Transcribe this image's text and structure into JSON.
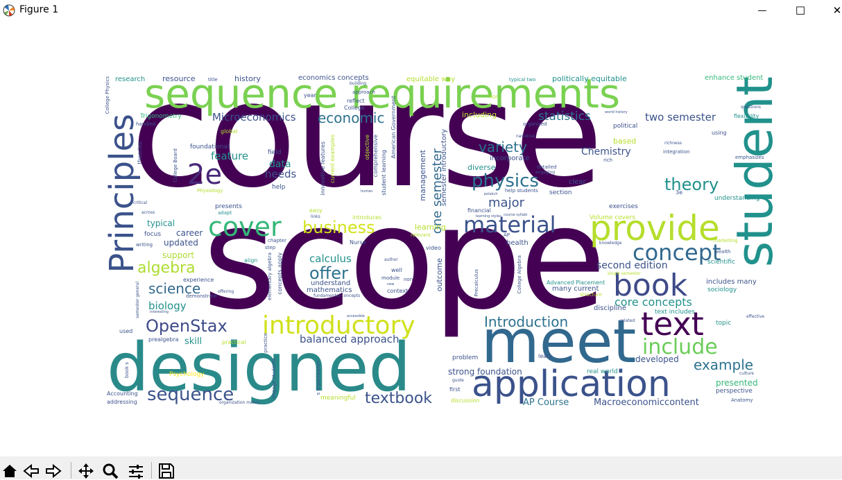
{
  "window": {
    "title": "Figure 1",
    "minimize_glyph": "—",
    "maximize_glyph": "☐",
    "close_glyph": "✕"
  },
  "toolbar": {
    "buttons": [
      {
        "name": "home-icon",
        "tooltip": "Reset original view"
      },
      {
        "name": "back-icon",
        "tooltip": "Back"
      },
      {
        "name": "forward-icon",
        "tooltip": "Forward"
      },
      {
        "name": "pan-icon",
        "tooltip": "Pan"
      },
      {
        "name": "zoom-icon",
        "tooltip": "Zoom"
      },
      {
        "name": "configure-subplots-icon",
        "tooltip": "Configure subplots"
      },
      {
        "name": "save-icon",
        "tooltip": "Save the figure"
      }
    ]
  },
  "colors": {
    "purple": "#440154",
    "indigo": "#3b528b",
    "teal": "#21918c",
    "green": "#5ec962",
    "yellow": "#fde725"
  },
  "wordcloud": {
    "words": {
      "course": "course",
      "scope": "scope",
      "designed": "designed",
      "meet": "meet",
      "student": "student",
      "sequence_requirements": "sequence requirements",
      "principles": "Principles",
      "application": "application",
      "provide": "provide",
      "book": "book",
      "text": "text",
      "cover": "cover",
      "introductory": "introductory",
      "material": "material",
      "concept": "concept",
      "include": "include",
      "two_e": "2e",
      "physics": "physics",
      "theory": "theory",
      "business": "business",
      "sequence": "sequence",
      "textbook": "textbook",
      "openstax": "OpenStax",
      "introduction": "Introduction",
      "example": "example",
      "algebra": "algebra",
      "offer": "offer",
      "variety": "variety",
      "economic": "economic",
      "science": "science",
      "microeconomics": "Microeconomics",
      "one_semester": "one semester",
      "major": "major",
      "statistics": "statistics",
      "two_semester": "two semester",
      "core_concepts": "core concepts",
      "second_edition": "second edition",
      "balanced_approach": "balanced approach",
      "calculus": "calculus",
      "biology": "biology",
      "chemistry": "Chemistry",
      "feature": "feature",
      "needs": "needs",
      "data": "data",
      "strong_foundation": "strong foundation",
      "macroeconomiccontent": "Macroeconomiccontent",
      "ap_course": "AP Course",
      "presented": "presented",
      "developed": "developed",
      "updated": "updated",
      "typical": "typical",
      "career": "career",
      "skill": "skill",
      "support": "support",
      "outcome": "outcome",
      "management": "management",
      "semester_introductory": "semester introductory",
      "mathematics": "mathematics",
      "understand": "understand",
      "diverse": "diverse",
      "incorporate": "incorporate",
      "learning": "learning",
      "including": "including",
      "based": "based",
      "clear": "clear",
      "section": "section",
      "history": "history",
      "resource": "resource",
      "research": "research",
      "economics_concepts": "economics concepts",
      "equitable_way": "equitable way",
      "politically_equitable": "politically equitable",
      "enhance_student": "enhance student",
      "typical_two": "typical two",
      "flexibility": "flexibility",
      "includes_many": "includes many",
      "many_current": "many current",
      "discipline": "discipline",
      "real_world": "real world",
      "perspective": "perspective",
      "topic": "topic",
      "text_includes": "text includes",
      "exercises": "exercises",
      "understanding": "understanding",
      "volume_covers": "Volume covers",
      "health": "health",
      "problem": "problem",
      "first": "first",
      "discussion": "discussion",
      "meaningful": "meaningful",
      "addressing": "addressing",
      "accounting": "Accounting",
      "psychology": "Psychology",
      "prealgebra": "prealgebra",
      "practical": "practical",
      "experience": "experience",
      "focus": "focus",
      "writing": "writing",
      "presents": "presents",
      "adapt": "adapt",
      "foundational": "foundational",
      "field": "field",
      "help": "help",
      "trigonometry": "Trigonometry",
      "handled": "handled",
      "global": "global",
      "year": "year",
      "approach": "approach",
      "reflect": "reflect",
      "college": "College",
      "american_government": "American Government",
      "student_learning": "student learning",
      "comprehensive": "comprehensive",
      "objective": "objective",
      "current_examples": "current examples",
      "innovative_features": "innovative features",
      "introduces": "introduces",
      "easy": "easy",
      "financial": "financial",
      "chapter": "chapter",
      "step": "step",
      "nurse": "Nurse",
      "align": "align",
      "well": "well",
      "non": "non",
      "module": "module",
      "context": "context",
      "video": "video",
      "relevant": "relevant",
      "concepts_apply": "concepts apply",
      "elementary_algebra": "elementary algebra",
      "college_physics": "College Physics",
      "college_board": "College Board",
      "theories": "theories",
      "physiology": "Physiology",
      "critical": "critical",
      "semester_general": "semester general",
      "used": "used",
      "book_s": "book s",
      "engage_students": "engage students",
      "organization": "s organization",
      "guide": "guide",
      "learn": "learn",
      "culture": "culture",
      "anatomy": "Anatomy",
      "scientific": "scientific",
      "sociology": "sociology",
      "advanced_placement": "Advanced Placement",
      "structure": "structure",
      "college_algebra": "College Algebra",
      "precalculus": "Precalculus",
      "political": "political",
      "organized": "organized",
      "integration": "integration",
      "rich": "rich",
      "emphasizes": "emphasizes",
      "using": "using",
      "wealth": "wealth",
      "marketing": "marketing",
      "knowledge": "knowledge",
      "questions": "questions",
      "richness": "richness",
      "three_e": "3e",
      "related": "related",
      "effective": "effective",
      "practice": "practice",
      "narrative": "narrative",
      "detailed": "detailed",
      "engaging": "engaging",
      "help_students": "help students",
      "ap": "AP",
      "pdf": "PDF",
      "title": "title",
      "building": "building",
      "world_history": "world history",
      "single_semester": "single semester",
      "author": "author",
      "new": "new",
      "fundamental_concepts": "fundamental concepts",
      "accessible": "accessible",
      "human": "human",
      "links": "links",
      "demonstrate": "demonstrate",
      "offering": "offering",
      "interesting": "interesting",
      "across": "across",
      "organization_makes": "organization makes",
      "learning_styles": "learning styles",
      "course_syllabi": "course syllabi",
      "polakch": "polakch"
    }
  }
}
